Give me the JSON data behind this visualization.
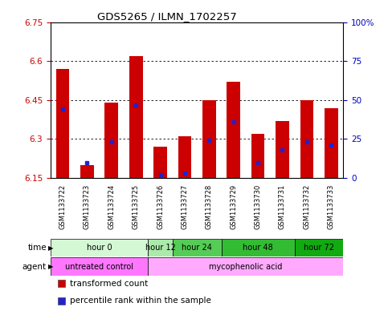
{
  "title": "GDS5265 / ILMN_1702257",
  "samples": [
    "GSM1133722",
    "GSM1133723",
    "GSM1133724",
    "GSM1133725",
    "GSM1133726",
    "GSM1133727",
    "GSM1133728",
    "GSM1133729",
    "GSM1133730",
    "GSM1133731",
    "GSM1133732",
    "GSM1133733"
  ],
  "bar_tops": [
    6.57,
    6.2,
    6.44,
    6.62,
    6.27,
    6.31,
    6.45,
    6.52,
    6.32,
    6.37,
    6.45,
    6.42
  ],
  "bar_base": 6.15,
  "blue_values": [
    44,
    10,
    23,
    47,
    2,
    3,
    24,
    36,
    10,
    18,
    23,
    21
  ],
  "ylim_left": [
    6.15,
    6.75
  ],
  "ylim_right": [
    0,
    100
  ],
  "yticks_left": [
    6.15,
    6.3,
    6.45,
    6.6,
    6.75
  ],
  "ytick_labels_left": [
    "6.15",
    "6.3",
    "6.45",
    "6.6",
    "6.75"
  ],
  "yticks_right": [
    0,
    25,
    50,
    75,
    100
  ],
  "ytick_labels_right": [
    "0",
    "25",
    "50",
    "75",
    "100%"
  ],
  "hlines": [
    6.3,
    6.45,
    6.6
  ],
  "bar_color": "#cc0000",
  "blue_color": "#2222cc",
  "bar_width": 0.55,
  "time_groups": [
    {
      "label": "hour 0",
      "start": 0,
      "end": 3,
      "color": "#d4f7d4"
    },
    {
      "label": "hour 12",
      "start": 4,
      "end": 4,
      "color": "#aaeaaa"
    },
    {
      "label": "hour 24",
      "start": 5,
      "end": 6,
      "color": "#55cc55"
    },
    {
      "label": "hour 48",
      "start": 7,
      "end": 9,
      "color": "#33bb33"
    },
    {
      "label": "hour 72",
      "start": 10,
      "end": 11,
      "color": "#11aa11"
    }
  ],
  "agent_groups": [
    {
      "label": "untreated control",
      "start": 0,
      "end": 3,
      "color": "#ff77ff"
    },
    {
      "label": "mycophenolic acid",
      "start": 4,
      "end": 11,
      "color": "#ffaaff"
    }
  ],
  "legend_items": [
    {
      "color": "#cc0000",
      "label": "transformed count"
    },
    {
      "color": "#2222cc",
      "label": "percentile rank within the sample"
    }
  ],
  "left_label_color": "#cc0000",
  "right_label_color": "#0000bb",
  "grid_color": "#000000",
  "bg_color": "#ffffff"
}
